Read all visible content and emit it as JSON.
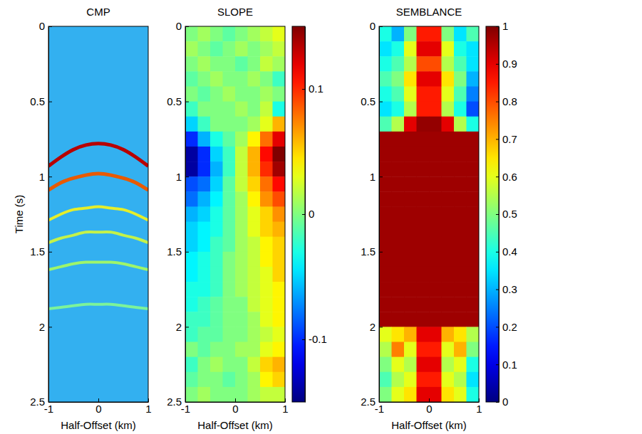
{
  "chart_data": [
    {
      "type": "line",
      "title": "CMP",
      "xlabel": "Half-Offset (km)",
      "ylabel": "Time (s)",
      "xlim": [
        -1,
        1
      ],
      "ylim": [
        2.5,
        0
      ],
      "xticks": [
        -1,
        0,
        1
      ],
      "yticks": [
        0,
        0.5,
        1,
        1.5,
        2,
        2.5
      ],
      "x": [
        -1,
        -0.75,
        -0.5,
        -0.25,
        0,
        0.25,
        0.5,
        0.75,
        1
      ],
      "series": [
        {
          "color": "#b80000",
          "values": [
            0.93,
            0.87,
            0.82,
            0.79,
            0.78,
            0.79,
            0.82,
            0.87,
            0.93
          ]
        },
        {
          "color": "#e85a00",
          "values": [
            1.09,
            1.04,
            1.01,
            0.99,
            0.98,
            0.99,
            1.01,
            1.04,
            1.09
          ]
        },
        {
          "color": "#e6ee2a",
          "values": [
            1.29,
            1.25,
            1.22,
            1.21,
            1.2,
            1.21,
            1.22,
            1.25,
            1.29
          ]
        },
        {
          "color": "#c4f24a",
          "values": [
            1.44,
            1.41,
            1.39,
            1.37,
            1.37,
            1.37,
            1.39,
            1.41,
            1.44
          ]
        },
        {
          "color": "#9ef56a",
          "values": [
            1.62,
            1.6,
            1.58,
            1.57,
            1.57,
            1.57,
            1.58,
            1.6,
            1.62
          ]
        },
        {
          "color": "#7cf39a",
          "values": [
            1.88,
            1.87,
            1.86,
            1.85,
            1.85,
            1.85,
            1.86,
            1.87,
            1.88
          ]
        }
      ]
    },
    {
      "type": "heatmap",
      "title": "SLOPE",
      "xlabel": "Half-Offset (km)",
      "xlim": [
        -1,
        1
      ],
      "ylim": [
        2.5,
        0
      ],
      "xticks": [
        -1,
        0,
        1
      ],
      "yticks": [
        0,
        0.5,
        1,
        1.5,
        2,
        2.5
      ],
      "x_edges": [
        -1,
        -0.75,
        -0.5,
        -0.25,
        0,
        0.25,
        0.5,
        0.75,
        1
      ],
      "y_edges": [
        0,
        0.1,
        0.2,
        0.3,
        0.4,
        0.5,
        0.6,
        0.7,
        0.8,
        0.9,
        1,
        1.1,
        1.2,
        1.3,
        1.4,
        1.5,
        1.6,
        1.7,
        1.8,
        1.9,
        2,
        2.1,
        2.2,
        2.3,
        2.4,
        2.5
      ],
      "z": [
        [
          0.0,
          0.01,
          0.0,
          -0.01,
          0.0,
          0.01,
          0.02,
          0.03
        ],
        [
          0.01,
          0.0,
          -0.01,
          0.0,
          0.01,
          0.0,
          0.01,
          0.02
        ],
        [
          0.0,
          0.01,
          0.0,
          0.0,
          -0.01,
          0.0,
          0.02,
          0.01
        ],
        [
          -0.01,
          0.0,
          0.01,
          0.0,
          0.0,
          0.01,
          0.0,
          -0.02
        ],
        [
          0.0,
          -0.01,
          0.0,
          0.01,
          0.0,
          0.0,
          0.01,
          0.0
        ],
        [
          -0.02,
          0.0,
          0.0,
          0.0,
          0.01,
          0.0,
          0.02,
          -0.03
        ],
        [
          -0.05,
          -0.02,
          0.0,
          0.0,
          0.0,
          0.01,
          0.03,
          0.06
        ],
        [
          -0.1,
          -0.06,
          -0.03,
          -0.01,
          0.01,
          0.04,
          0.08,
          0.12
        ],
        [
          -0.14,
          -0.1,
          -0.05,
          -0.02,
          0.02,
          0.06,
          0.11,
          0.15
        ],
        [
          -0.14,
          -0.1,
          -0.06,
          -0.02,
          0.02,
          0.06,
          0.1,
          0.14
        ],
        [
          -0.09,
          -0.08,
          -0.05,
          -0.01,
          0.02,
          0.05,
          0.08,
          0.11
        ],
        [
          -0.08,
          -0.06,
          -0.04,
          -0.01,
          0.01,
          0.04,
          0.07,
          0.09
        ],
        [
          -0.06,
          -0.05,
          -0.03,
          -0.01,
          0.01,
          0.03,
          0.05,
          0.07
        ],
        [
          -0.05,
          -0.04,
          -0.03,
          -0.01,
          0.01,
          0.03,
          0.05,
          0.06
        ],
        [
          -0.05,
          -0.04,
          -0.02,
          -0.01,
          0.01,
          0.02,
          0.04,
          0.05
        ],
        [
          -0.04,
          -0.03,
          -0.02,
          0.0,
          0.01,
          0.02,
          0.04,
          0.05
        ],
        [
          -0.04,
          -0.03,
          -0.02,
          0.0,
          0.01,
          0.02,
          0.03,
          0.05
        ],
        [
          -0.03,
          -0.03,
          -0.02,
          0.0,
          0.01,
          0.02,
          0.03,
          0.04
        ],
        [
          -0.03,
          -0.02,
          -0.01,
          0.0,
          0.0,
          0.02,
          0.03,
          0.04
        ],
        [
          -0.02,
          -0.02,
          -0.01,
          0.0,
          0.0,
          0.01,
          0.03,
          0.04
        ],
        [
          -0.02,
          -0.01,
          -0.01,
          0.0,
          0.0,
          0.01,
          0.02,
          0.03
        ],
        [
          0.0,
          -0.01,
          0.0,
          0.0,
          0.01,
          0.01,
          0.03,
          0.04
        ],
        [
          -0.02,
          0.0,
          0.01,
          0.0,
          0.0,
          0.02,
          0.05,
          0.06
        ],
        [
          -0.01,
          0.0,
          0.0,
          -0.01,
          0.0,
          0.01,
          0.04,
          0.05
        ],
        [
          0.0,
          0.01,
          0.0,
          0.0,
          0.0,
          0.01,
          0.02,
          0.02
        ]
      ],
      "colorbar": {
        "lim": [
          -0.15,
          0.15
        ],
        "ticks": [
          -0.1,
          0,
          0.1
        ]
      }
    },
    {
      "type": "heatmap",
      "title": "SEMBLANCE",
      "xlabel": "Half-Offset (km)",
      "xlim": [
        -1,
        1
      ],
      "ylim": [
        2.5,
        0
      ],
      "xticks": [
        -1,
        0,
        1
      ],
      "yticks": [
        0,
        0.5,
        1,
        1.5,
        2,
        2.5
      ],
      "x_edges": [
        -1,
        -0.75,
        -0.5,
        -0.25,
        0,
        0.25,
        0.5,
        0.75,
        1
      ],
      "y_edges": [
        0,
        0.1,
        0.2,
        0.3,
        0.4,
        0.5,
        0.6,
        0.7,
        0.8,
        0.9,
        1,
        1.1,
        1.2,
        1.3,
        1.4,
        1.5,
        1.6,
        1.7,
        1.8,
        1.9,
        2,
        2.1,
        2.2,
        2.3,
        2.4,
        2.5
      ],
      "z": [
        [
          0.4,
          0.3,
          0.5,
          0.85,
          0.85,
          0.5,
          0.35,
          0.45
        ],
        [
          0.35,
          0.4,
          0.6,
          0.9,
          0.9,
          0.6,
          0.4,
          0.35
        ],
        [
          0.4,
          0.45,
          0.55,
          0.8,
          0.8,
          0.55,
          0.45,
          0.35
        ],
        [
          0.45,
          0.5,
          0.65,
          0.9,
          0.9,
          0.65,
          0.5,
          0.3
        ],
        [
          0.4,
          0.45,
          0.6,
          0.85,
          0.85,
          0.6,
          0.45,
          0.25
        ],
        [
          0.35,
          0.4,
          0.55,
          0.85,
          0.85,
          0.55,
          0.4,
          0.2
        ],
        [
          0.45,
          0.55,
          0.9,
          0.98,
          0.98,
          0.9,
          0.55,
          0.4
        ],
        [
          0.97,
          0.97,
          0.97,
          0.97,
          0.97,
          0.97,
          0.97,
          0.97
        ],
        [
          0.97,
          0.97,
          0.97,
          0.97,
          0.97,
          0.97,
          0.97,
          0.97
        ],
        [
          0.97,
          0.97,
          0.97,
          0.97,
          0.97,
          0.97,
          0.97,
          0.97
        ],
        [
          0.97,
          0.97,
          0.97,
          0.97,
          0.97,
          0.97,
          0.97,
          0.97
        ],
        [
          0.97,
          0.97,
          0.97,
          0.97,
          0.97,
          0.97,
          0.97,
          0.97
        ],
        [
          0.97,
          0.97,
          0.97,
          0.97,
          0.97,
          0.97,
          0.97,
          0.97
        ],
        [
          0.97,
          0.97,
          0.97,
          0.97,
          0.97,
          0.97,
          0.97,
          0.97
        ],
        [
          0.97,
          0.97,
          0.97,
          0.97,
          0.97,
          0.97,
          0.97,
          0.97
        ],
        [
          0.97,
          0.97,
          0.97,
          0.97,
          0.97,
          0.97,
          0.97,
          0.97
        ],
        [
          0.97,
          0.97,
          0.97,
          0.97,
          0.97,
          0.97,
          0.97,
          0.97
        ],
        [
          0.97,
          0.97,
          0.97,
          0.97,
          0.97,
          0.97,
          0.97,
          0.97
        ],
        [
          0.97,
          0.97,
          0.97,
          0.97,
          0.97,
          0.97,
          0.97,
          0.97
        ],
        [
          0.97,
          0.97,
          0.97,
          0.97,
          0.97,
          0.97,
          0.97,
          0.97
        ],
        [
          0.6,
          0.65,
          0.7,
          0.9,
          0.9,
          0.7,
          0.65,
          0.55
        ],
        [
          0.55,
          0.75,
          0.6,
          0.85,
          0.85,
          0.6,
          0.7,
          0.5
        ],
        [
          0.5,
          0.6,
          0.55,
          0.9,
          0.9,
          0.55,
          0.6,
          0.4
        ],
        [
          0.45,
          0.55,
          0.6,
          0.85,
          0.85,
          0.6,
          0.55,
          0.35
        ],
        [
          0.5,
          0.6,
          0.65,
          0.9,
          0.9,
          0.65,
          0.6,
          0.4
        ]
      ],
      "colorbar": {
        "lim": [
          0,
          1
        ],
        "ticks": [
          0,
          0.1,
          0.2,
          0.3,
          0.4,
          0.5,
          0.6,
          0.7,
          0.8,
          0.9,
          1
        ]
      }
    }
  ]
}
